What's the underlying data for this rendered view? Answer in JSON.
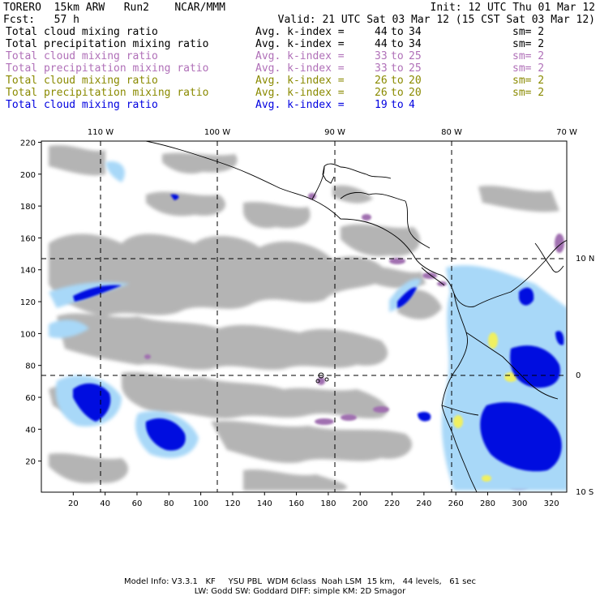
{
  "header": {
    "model": "TORERO  15km ARW   Run2    NCAR/MMM",
    "init": "Init: 12 UTC Thu 01 Mar 12",
    "fcst": "Fcst:   57 h",
    "valid": "Valid: 21 UTC Sat 03 Mar 12 (15 CST Sat 03 Mar 12)"
  },
  "legend": [
    {
      "field": "Total cloud mixing ratio",
      "stat": "Avg. k-index =",
      "from": "44",
      "to": "34",
      "sm": "sm= 2",
      "color": "#000000"
    },
    {
      "field": "Total precipitation mixing ratio",
      "stat": "Avg. k-index =",
      "from": "44",
      "to": "34",
      "sm": "sm= 2",
      "color": "#000000"
    },
    {
      "field": "Total cloud mixing ratio",
      "stat": "Avg. k-index =",
      "from": "33",
      "to": "25",
      "sm": "sm= 2",
      "color": "#b070b8"
    },
    {
      "field": "Total precipitation mixing ratio",
      "stat": "Avg. k-index =",
      "from": "33",
      "to": "25",
      "sm": "sm= 2",
      "color": "#b070b8"
    },
    {
      "field": "Total cloud mixing ratio",
      "stat": "Avg. k-index =",
      "from": "26",
      "to": "20",
      "sm": "sm= 2",
      "color": "#8a8a00"
    },
    {
      "field": "Total precipitation mixing ratio",
      "stat": "Avg. k-index =",
      "from": "26",
      "to": "20",
      "sm": "sm= 2",
      "color": "#8a8a00"
    },
    {
      "field": "Total cloud mixing ratio",
      "stat": "Avg. k-index =",
      "from": "19",
      "to": "4",
      "sm": "",
      "color": "#0000e0"
    }
  ],
  "to_word": "to",
  "map": {
    "lon_labels": [
      "110 W",
      "100 W",
      "90 W",
      "80 W",
      "70 W"
    ],
    "lat_labels": [
      "10 N",
      "0",
      "10 S"
    ],
    "x_ticks": [
      "20",
      "40",
      "60",
      "80",
      "100",
      "120",
      "140",
      "160",
      "180",
      "200",
      "220",
      "240",
      "260",
      "280",
      "300",
      "320"
    ],
    "y_ticks": [
      "20",
      "40",
      "60",
      "80",
      "100",
      "120",
      "140",
      "160",
      "180",
      "200",
      "220"
    ],
    "colors": {
      "gray": "#a8a8a8",
      "purple": "#a070b0",
      "olive_yellow": "#f0f060",
      "blue": "#0010e0",
      "light_blue": "#a8d8f8"
    }
  },
  "footer": {
    "line1": "Model Info: V3.3.1   KF     YSU PBL  WDM 6class  Noah LSM  15 km,   44 levels,   61 sec",
    "line2": "LW: Godd SW: Goddard DIFF: simple KM: 2D Smagor"
  }
}
